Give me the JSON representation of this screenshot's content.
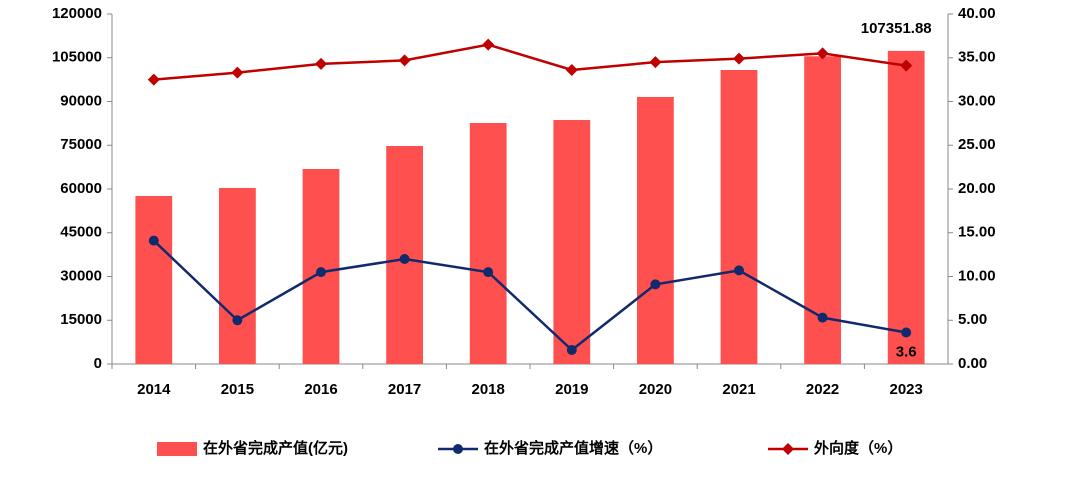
{
  "chart_data": {
    "type": "combo",
    "categories": [
      "2014",
      "2015",
      "2016",
      "2017",
      "2018",
      "2019",
      "2020",
      "2021",
      "2022",
      "2023"
    ],
    "series": [
      {
        "name": "在外省完成产值(亿元)",
        "type": "bar",
        "color": "#ff5050",
        "data_labels": "last",
        "values": [
          57600,
          60350,
          66860,
          74750,
          82630,
          83660,
          91550,
          100800,
          105500,
          107351.88
        ]
      },
      {
        "name": "在外省完成产值增速（%）",
        "type": "line",
        "marker": "circle",
        "axis": "y2",
        "color": "#102a6b",
        "data_labels": "last",
        "values": [
          14.1,
          5.0,
          10.5,
          12.0,
          10.5,
          1.6,
          9.1,
          10.7,
          5.3,
          3.6
        ]
      },
      {
        "name": "外向度（%）",
        "type": "line",
        "marker": "diamond",
        "axis": "y2",
        "color": "#c00000",
        "values": [
          32.5,
          33.3,
          34.3,
          34.7,
          36.5,
          33.6,
          34.5,
          34.9,
          35.5,
          34.1
        ]
      }
    ],
    "ylim": [
      0,
      120000
    ],
    "yticks": [
      0,
      15000,
      30000,
      45000,
      60000,
      75000,
      90000,
      105000,
      120000
    ],
    "y2lim": [
      0,
      40
    ],
    "y2ticks": [
      {
        "value": 0,
        "label": "0.00"
      },
      {
        "value": 5,
        "label": "5.00"
      },
      {
        "value": 10,
        "label": "10.00"
      },
      {
        "value": 15,
        "label": "15.00"
      },
      {
        "value": 20,
        "label": "20.00"
      },
      {
        "value": 25,
        "label": "25.00"
      },
      {
        "value": 30,
        "label": "30.00"
      },
      {
        "value": 35,
        "label": "35.00"
      },
      {
        "value": 40,
        "label": "40.00"
      }
    ],
    "grid": false,
    "legend": "bottom"
  }
}
